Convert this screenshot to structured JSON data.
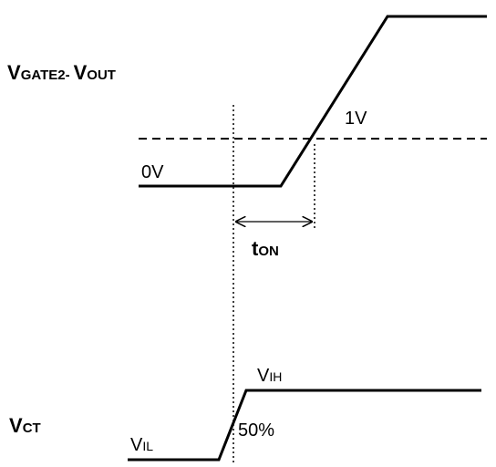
{
  "top_signal": {
    "name": [
      "V",
      "GATE2-",
      "V",
      "OUT"
    ],
    "high_label": "1V",
    "low_label": "0V"
  },
  "delay": {
    "name": [
      "t",
      "ON"
    ]
  },
  "bottom_signal": {
    "name": [
      "V",
      "CT"
    ],
    "high_label": [
      "V",
      "IH"
    ],
    "low_label": [
      "V",
      "IL"
    ],
    "threshold_label": "50%"
  }
}
